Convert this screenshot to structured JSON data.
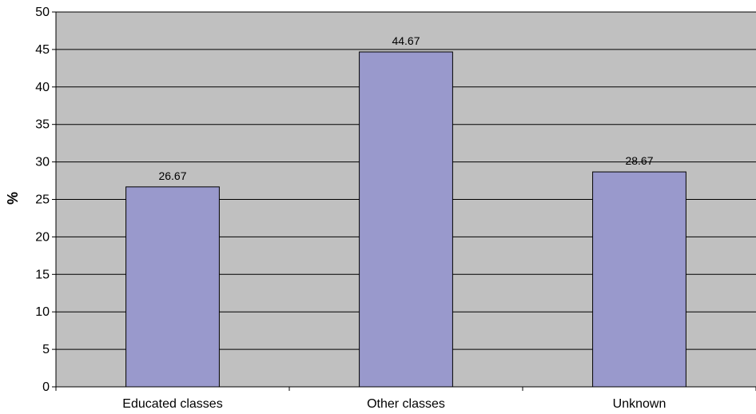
{
  "chart_data": {
    "type": "bar",
    "categories": [
      "Educated classes",
      "Other classes",
      "Unknown"
    ],
    "values": [
      26.67,
      44.67,
      28.67
    ],
    "data_labels": [
      "26.67",
      "44.67",
      "28.67"
    ],
    "title": "",
    "xlabel": "",
    "ylabel": "%",
    "ylim": [
      0,
      50
    ],
    "yticks": [
      0,
      5,
      10,
      15,
      20,
      25,
      30,
      35,
      40,
      45,
      50
    ],
    "grid": true,
    "legend": "none"
  },
  "colors": {
    "plot_background": "#c0c0c0",
    "bar_fill": "#9999cc",
    "bar_stroke": "#000000",
    "gridline": "#000000"
  }
}
